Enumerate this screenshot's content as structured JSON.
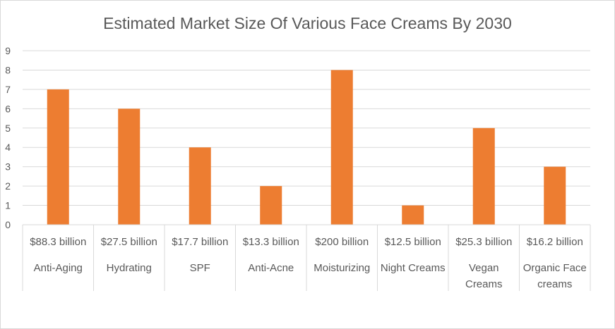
{
  "chart_data": {
    "type": "bar",
    "title": "Estimated Market Size Of Various Face Creams By 2030",
    "xlabel": "",
    "ylabel": "",
    "ylim": [
      0,
      9
    ],
    "yticks": [
      0,
      1,
      2,
      3,
      4,
      5,
      6,
      7,
      8,
      9
    ],
    "grid": true,
    "legend": "none",
    "bar_color": "#ED7D31",
    "categories": [
      {
        "market_size": "$88.3 billion",
        "name": "Anti-Aging"
      },
      {
        "market_size": "$27.5 billion",
        "name": "Hydrating"
      },
      {
        "market_size": "$17.7 billion",
        "name": "SPF"
      },
      {
        "market_size": "$13.3 billion",
        "name": "Anti-Acne"
      },
      {
        "market_size": "$200 billion",
        "name": "Moisturizing"
      },
      {
        "market_size": "$12.5 billion",
        "name": "Night Creams"
      },
      {
        "market_size": "$25.3 billion",
        "name": "Vegan Creams"
      },
      {
        "market_size": "$16.2 billion",
        "name": "Organic Face creams"
      }
    ],
    "values": [
      7,
      6,
      4,
      2,
      8,
      1,
      5,
      3
    ]
  }
}
